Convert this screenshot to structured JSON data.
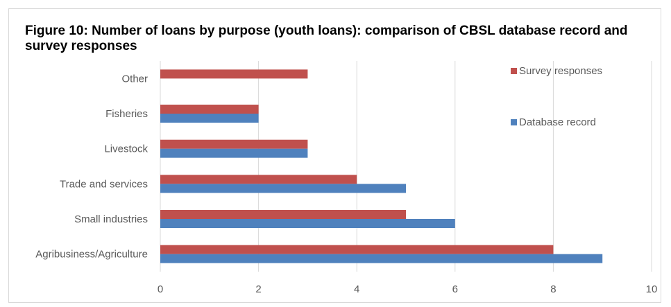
{
  "chart_data": {
    "type": "bar",
    "orientation": "horizontal",
    "title": "Figure 10: Number of loans by purpose (youth loans): comparison of CBSL database record and survey responses",
    "categories": [
      "Agribusiness/Agriculture",
      "Small industries",
      "Trade and services",
      "Livestock",
      "Fisheries",
      "Other"
    ],
    "series": [
      {
        "name": "Survey responses",
        "color": "#c0504d",
        "values": [
          8,
          5,
          4,
          3,
          2,
          3
        ]
      },
      {
        "name": "Database record",
        "color": "#4f81bd",
        "values": [
          9,
          6,
          5,
          3,
          2,
          0
        ]
      }
    ],
    "xlim": [
      0,
      10
    ],
    "xticks": [
      0,
      2,
      4,
      6,
      8,
      10
    ],
    "grid": true,
    "legend": "top-right"
  }
}
